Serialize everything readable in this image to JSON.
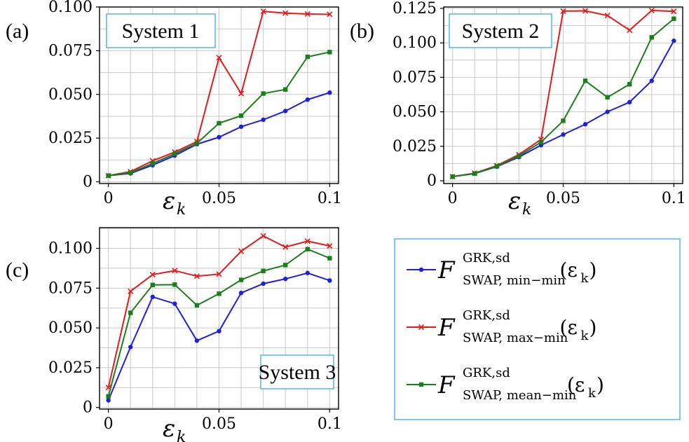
{
  "legend": {
    "entries": [
      {
        "symbol": "F",
        "superscript": "GRK,sd",
        "subscript": "SWAP, min−min",
        "argument": "(ε",
        "argument_sub": "k",
        "argument_close": ")",
        "color": "#1f1fdd",
        "marker": "circle"
      },
      {
        "symbol": "F",
        "superscript": "GRK,sd",
        "subscript": "SWAP, max−min",
        "argument": "(ε",
        "argument_sub": "k",
        "argument_close": ")",
        "color": "#e31a1c",
        "marker": "x"
      },
      {
        "symbol": "F",
        "superscript": "GRK,sd",
        "subscript": "SWAP, mean−min",
        "argument": "(ε",
        "argument_sub": "k",
        "argument_close": ")",
        "color": "#1a7f1a",
        "marker": "square"
      }
    ]
  },
  "chart_data": [
    {
      "type": "line",
      "panel": "(a)",
      "label": "System 1",
      "xlabel": "ε",
      "xlabel_sub": "k",
      "x": [
        0,
        0.01,
        0.02,
        0.03,
        0.04,
        0.05,
        0.06,
        0.07,
        0.08,
        0.09,
        0.1
      ],
      "xlim": [
        -0.004,
        0.104
      ],
      "ylim": [
        -0.001,
        0.1
      ],
      "xticks": [
        0,
        0.05,
        0.1
      ],
      "xtick_labels": [
        "0",
        "0.05",
        "0.1"
      ],
      "yticks": [
        0,
        0.025,
        0.05,
        0.075,
        0.1
      ],
      "ytick_labels": [
        "0",
        "0.025",
        "0.050",
        "0.075",
        "0.100"
      ],
      "grid": true,
      "series": [
        {
          "values": [
            0.0035,
            0.0048,
            0.0095,
            0.015,
            0.0215,
            0.0255,
            0.0315,
            0.0355,
            0.0405,
            0.047,
            0.051
          ]
        },
        {
          "values": [
            0.0035,
            0.0058,
            0.012,
            0.017,
            0.023,
            0.071,
            0.0505,
            0.0975,
            0.0965,
            0.096,
            0.0958
          ]
        },
        {
          "values": [
            0.0035,
            0.0052,
            0.0105,
            0.016,
            0.022,
            0.0335,
            0.0378,
            0.0505,
            0.0528,
            0.0715,
            0.0742
          ]
        }
      ]
    },
    {
      "type": "line",
      "panel": "(b)",
      "label": "System 2",
      "xlabel": "ε",
      "xlabel_sub": "k",
      "x": [
        0,
        0.01,
        0.02,
        0.03,
        0.04,
        0.05,
        0.06,
        0.07,
        0.08,
        0.09,
        0.1
      ],
      "xlim": [
        -0.004,
        0.104
      ],
      "ylim": [
        -0.002,
        0.126
      ],
      "xticks": [
        0,
        0.05,
        0.1
      ],
      "xtick_labels": [
        "0",
        "0.05",
        "0.1"
      ],
      "yticks": [
        0,
        0.025,
        0.05,
        0.075,
        0.1,
        0.125
      ],
      "ytick_labels": [
        "0",
        "0.025",
        "0.050",
        "0.075",
        "0.100",
        "0.125"
      ],
      "grid": true,
      "series": [
        {
          "values": [
            0.003,
            0.0052,
            0.0102,
            0.0172,
            0.0258,
            0.0335,
            0.041,
            0.05,
            0.057,
            0.0725,
            0.1015
          ]
        },
        {
          "values": [
            0.003,
            0.0055,
            0.011,
            0.019,
            0.03,
            0.123,
            0.1232,
            0.1198,
            0.1092,
            0.1235,
            0.1228
          ]
        },
        {
          "values": [
            0.003,
            0.0053,
            0.0105,
            0.018,
            0.028,
            0.0435,
            0.0725,
            0.0605,
            0.07,
            0.104,
            0.1175
          ]
        }
      ]
    },
    {
      "type": "line",
      "panel": "(c)",
      "label": "System 3",
      "xlabel": "ε",
      "xlabel_sub": "k",
      "x": [
        0,
        0.01,
        0.02,
        0.03,
        0.04,
        0.05,
        0.06,
        0.07,
        0.08,
        0.09,
        0.1
      ],
      "xlim": [
        -0.004,
        0.104
      ],
      "ylim": [
        -0.001,
        0.113
      ],
      "xticks": [
        0,
        0.05,
        0.1
      ],
      "xtick_labels": [
        "0",
        "0.05",
        "0.1"
      ],
      "yticks": [
        0,
        0.025,
        0.05,
        0.075,
        0.1
      ],
      "ytick_labels": [
        "0",
        "0.025",
        "0.050",
        "0.075",
        "0.100"
      ],
      "grid": true,
      "series": [
        {
          "values": [
            0.0045,
            0.038,
            0.0695,
            0.0652,
            0.042,
            0.048,
            0.072,
            0.0778,
            0.0808,
            0.0845,
            0.0798
          ]
        },
        {
          "values": [
            0.0125,
            0.073,
            0.0835,
            0.086,
            0.0825,
            0.0838,
            0.0982,
            0.1078,
            0.1008,
            0.1045,
            0.1015
          ]
        },
        {
          "values": [
            0.007,
            0.0595,
            0.077,
            0.0772,
            0.0642,
            0.0715,
            0.0802,
            0.0858,
            0.0895,
            0.0995,
            0.0938
          ]
        }
      ]
    }
  ]
}
